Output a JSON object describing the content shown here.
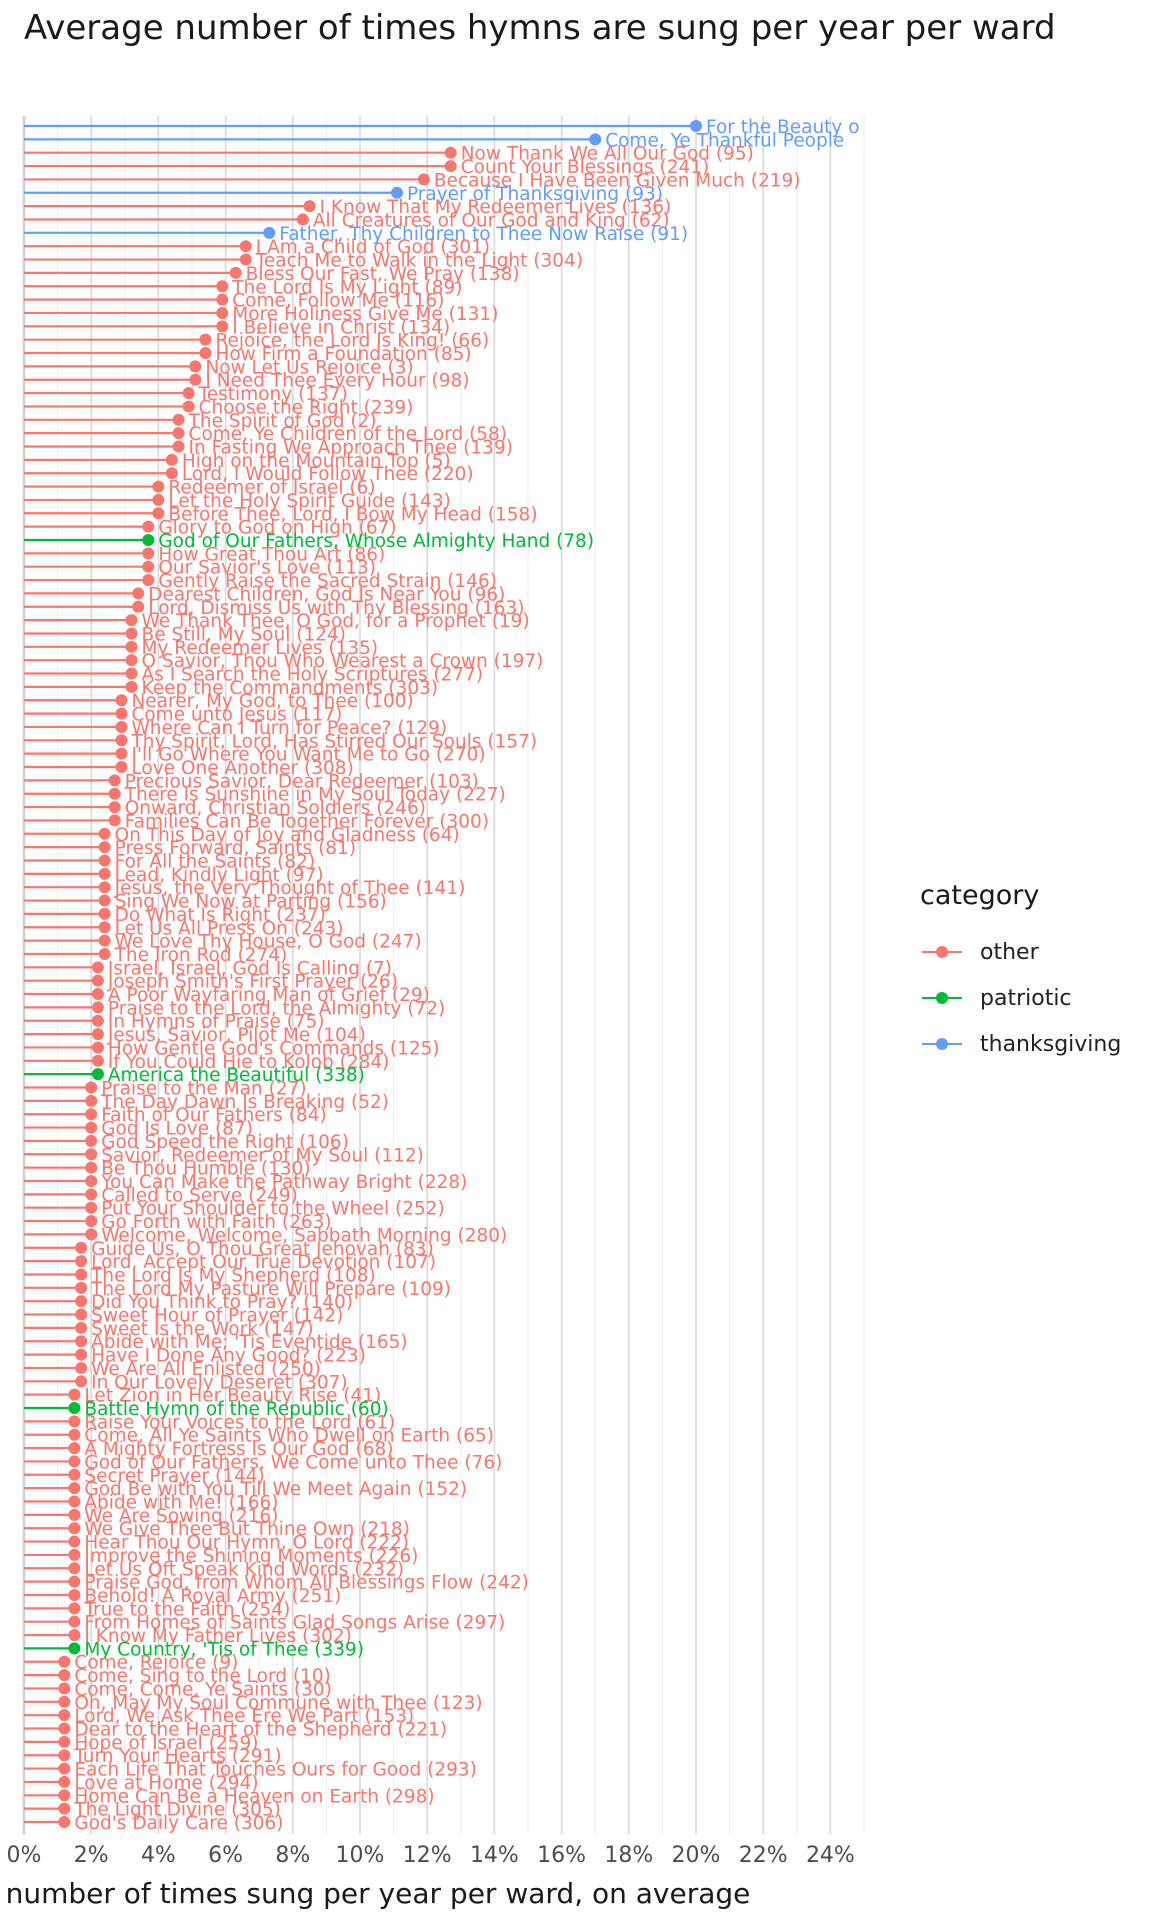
{
  "chart_data": {
    "type": "lollipop",
    "title": "Average number of times hymns are sung per year per ward",
    "xlabel": "number of times sung per year per ward, on average",
    "ylabel": "",
    "xlim": [
      0,
      25
    ],
    "x_ticks": [
      "0%",
      "2%",
      "4%",
      "6%",
      "8%",
      "10%",
      "12%",
      "14%",
      "16%",
      "18%",
      "20%",
      "22%",
      "24%"
    ],
    "legend": {
      "title": "category",
      "position": "right",
      "entries": [
        {
          "name": "other",
          "color": "#F8766D"
        },
        {
          "name": "patriotic",
          "color": "#00BA38"
        },
        {
          "name": "thanksgiving",
          "color": "#619CFF"
        }
      ]
    },
    "colors": {
      "other": "#F8766D",
      "patriotic": "#00BA38",
      "thanksgiving": "#619CFF"
    },
    "points": [
      {
        "label": "For the Beauty o",
        "value": 20.0,
        "category": "thanksgiving"
      },
      {
        "label": "Come, Ye Thankful People",
        "value": 17.0,
        "category": "thanksgiving"
      },
      {
        "label": "Now Thank We All Our God (95)",
        "value": 12.7,
        "category": "other"
      },
      {
        "label": "Count Your Blessings (241)",
        "value": 12.7,
        "category": "other"
      },
      {
        "label": "Because I Have Been Given Much (219)",
        "value": 11.9,
        "category": "other"
      },
      {
        "label": "Prayer of Thanksgiving (93)",
        "value": 11.1,
        "category": "thanksgiving"
      },
      {
        "label": "I Know That My Redeemer Lives (136)",
        "value": 8.5,
        "category": "other"
      },
      {
        "label": "All Creatures of Our God and King (62)",
        "value": 8.3,
        "category": "other"
      },
      {
        "label": "Father, Thy Children to Thee Now Raise (91)",
        "value": 7.3,
        "category": "thanksgiving"
      },
      {
        "label": "I Am a Child of God (301)",
        "value": 6.6,
        "category": "other"
      },
      {
        "label": "Teach Me to Walk in the Light (304)",
        "value": 6.6,
        "category": "other"
      },
      {
        "label": "Bless Our Fast, We Pray (138)",
        "value": 6.3,
        "category": "other"
      },
      {
        "label": "The Lord Is My Light (89)",
        "value": 5.9,
        "category": "other"
      },
      {
        "label": "Come, Follow Me (116)",
        "value": 5.9,
        "category": "other"
      },
      {
        "label": "More Holiness Give Me (131)",
        "value": 5.9,
        "category": "other"
      },
      {
        "label": "I Believe in Christ (134)",
        "value": 5.9,
        "category": "other"
      },
      {
        "label": "Rejoice, the Lord Is King! (66)",
        "value": 5.4,
        "category": "other"
      },
      {
        "label": "How Firm a Foundation (85)",
        "value": 5.4,
        "category": "other"
      },
      {
        "label": "Now Let Us Rejoice (3)",
        "value": 5.1,
        "category": "other"
      },
      {
        "label": "I Need Thee Every Hour (98)",
        "value": 5.1,
        "category": "other"
      },
      {
        "label": "Testimony (137)",
        "value": 4.9,
        "category": "other"
      },
      {
        "label": "Choose the Right (239)",
        "value": 4.9,
        "category": "other"
      },
      {
        "label": "The Spirit of God (2)",
        "value": 4.6,
        "category": "other"
      },
      {
        "label": "Come, Ye Children of the Lord (58)",
        "value": 4.6,
        "category": "other"
      },
      {
        "label": "In Fasting We Approach Thee (139)",
        "value": 4.6,
        "category": "other"
      },
      {
        "label": "High on the Mountain Top (5)",
        "value": 4.4,
        "category": "other"
      },
      {
        "label": "Lord, I Would Follow Thee (220)",
        "value": 4.4,
        "category": "other"
      },
      {
        "label": "Redeemer of Israel (6)",
        "value": 4.0,
        "category": "other"
      },
      {
        "label": "Let the Holy Spirit Guide (143)",
        "value": 4.0,
        "category": "other"
      },
      {
        "label": "Before Thee, Lord, I Bow My Head (158)",
        "value": 4.0,
        "category": "other"
      },
      {
        "label": "Glory to God on High (67)",
        "value": 3.7,
        "category": "other"
      },
      {
        "label": "God of Our Fathers, Whose Almighty Hand (78)",
        "value": 3.7,
        "category": "patriotic"
      },
      {
        "label": "How Great Thou Art (86)",
        "value": 3.7,
        "category": "other"
      },
      {
        "label": "Our Savior's Love (113)",
        "value": 3.7,
        "category": "other"
      },
      {
        "label": "Gently Raise the Sacred Strain (146)",
        "value": 3.7,
        "category": "other"
      },
      {
        "label": "Dearest Children, God Is Near You (96)",
        "value": 3.4,
        "category": "other"
      },
      {
        "label": "Lord, Dismiss Us with Thy Blessing (163)",
        "value": 3.4,
        "category": "other"
      },
      {
        "label": "We Thank Thee, O God, for a Prophet (19)",
        "value": 3.2,
        "category": "other"
      },
      {
        "label": "Be Still, My Soul (124)",
        "value": 3.2,
        "category": "other"
      },
      {
        "label": "My Redeemer Lives (135)",
        "value": 3.2,
        "category": "other"
      },
      {
        "label": "O Savior, Thou Who Wearest a Crown (197)",
        "value": 3.2,
        "category": "other"
      },
      {
        "label": "As I Search the Holy Scriptures (277)",
        "value": 3.2,
        "category": "other"
      },
      {
        "label": "Keep the Commandments (303)",
        "value": 3.2,
        "category": "other"
      },
      {
        "label": "Nearer, My God, to Thee (100)",
        "value": 2.9,
        "category": "other"
      },
      {
        "label": "Come unto Jesus (117)",
        "value": 2.9,
        "category": "other"
      },
      {
        "label": "Where Can I Turn for Peace? (129)",
        "value": 2.9,
        "category": "other"
      },
      {
        "label": "Thy Spirit, Lord, Has Stirred Our Souls (157)",
        "value": 2.9,
        "category": "other"
      },
      {
        "label": "I'll Go Where You Want Me to Go (270)",
        "value": 2.9,
        "category": "other"
      },
      {
        "label": "Love One Another (308)",
        "value": 2.9,
        "category": "other"
      },
      {
        "label": "Precious Savior, Dear Redeemer (103)",
        "value": 2.7,
        "category": "other"
      },
      {
        "label": "There Is Sunshine in My Soul Today (227)",
        "value": 2.7,
        "category": "other"
      },
      {
        "label": "Onward, Christian Soldiers (246)",
        "value": 2.7,
        "category": "other"
      },
      {
        "label": "Families Can Be Together Forever (300)",
        "value": 2.7,
        "category": "other"
      },
      {
        "label": "On This Day of Joy and Gladness (64)",
        "value": 2.4,
        "category": "other"
      },
      {
        "label": "Press Forward, Saints (81)",
        "value": 2.4,
        "category": "other"
      },
      {
        "label": "For All the Saints (82)",
        "value": 2.4,
        "category": "other"
      },
      {
        "label": "Lead, Kindly Light (97)",
        "value": 2.4,
        "category": "other"
      },
      {
        "label": "Jesus, the Very Thought of Thee (141)",
        "value": 2.4,
        "category": "other"
      },
      {
        "label": "Sing We Now at Parting (156)",
        "value": 2.4,
        "category": "other"
      },
      {
        "label": "Do What Is Right (237)",
        "value": 2.4,
        "category": "other"
      },
      {
        "label": "Let Us All Press On (243)",
        "value": 2.4,
        "category": "other"
      },
      {
        "label": "We Love Thy House, O God (247)",
        "value": 2.4,
        "category": "other"
      },
      {
        "label": "The Iron Rod (274)",
        "value": 2.4,
        "category": "other"
      },
      {
        "label": "Israel, Israel, God Is Calling (7)",
        "value": 2.2,
        "category": "other"
      },
      {
        "label": "Joseph Smith's First Prayer (26)",
        "value": 2.2,
        "category": "other"
      },
      {
        "label": "A Poor Wayfaring Man of Grief (29)",
        "value": 2.2,
        "category": "other"
      },
      {
        "label": "Praise to the Lord, the Almighty (72)",
        "value": 2.2,
        "category": "other"
      },
      {
        "label": "In Hymns of Praise (75)",
        "value": 2.2,
        "category": "other"
      },
      {
        "label": "Jesus, Savior, Pilot Me (104)",
        "value": 2.2,
        "category": "other"
      },
      {
        "label": "How Gentle God's Commands (125)",
        "value": 2.2,
        "category": "other"
      },
      {
        "label": "If You Could Hie to Kolob (284)",
        "value": 2.2,
        "category": "other"
      },
      {
        "label": "America the Beautiful (338)",
        "value": 2.2,
        "category": "patriotic"
      },
      {
        "label": "Praise to the Man (27)",
        "value": 2.0,
        "category": "other"
      },
      {
        "label": "The Day Dawn Is Breaking (52)",
        "value": 2.0,
        "category": "other"
      },
      {
        "label": "Faith of Our Fathers (84)",
        "value": 2.0,
        "category": "other"
      },
      {
        "label": "God Is Love (87)",
        "value": 2.0,
        "category": "other"
      },
      {
        "label": "God Speed the Right (106)",
        "value": 2.0,
        "category": "other"
      },
      {
        "label": "Savior, Redeemer of My Soul (112)",
        "value": 2.0,
        "category": "other"
      },
      {
        "label": "Be Thou Humble (130)",
        "value": 2.0,
        "category": "other"
      },
      {
        "label": "You Can Make the Pathway Bright (228)",
        "value": 2.0,
        "category": "other"
      },
      {
        "label": "Called to Serve (249)",
        "value": 2.0,
        "category": "other"
      },
      {
        "label": "Put Your Shoulder to the Wheel (252)",
        "value": 2.0,
        "category": "other"
      },
      {
        "label": "Go Forth with Faith (263)",
        "value": 2.0,
        "category": "other"
      },
      {
        "label": "Welcome, Welcome, Sabbath Morning (280)",
        "value": 2.0,
        "category": "other"
      },
      {
        "label": "Guide Us, O Thou Great Jehovah (83)",
        "value": 1.7,
        "category": "other"
      },
      {
        "label": "Lord, Accept Our True Devotion (107)",
        "value": 1.7,
        "category": "other"
      },
      {
        "label": "The Lord Is My Shepherd (108)",
        "value": 1.7,
        "category": "other"
      },
      {
        "label": "The Lord My Pasture Will Prepare (109)",
        "value": 1.7,
        "category": "other"
      },
      {
        "label": "Did You Think to Pray? (140)",
        "value": 1.7,
        "category": "other"
      },
      {
        "label": "Sweet Hour of Prayer (142)",
        "value": 1.7,
        "category": "other"
      },
      {
        "label": "Sweet Is the Work (147)",
        "value": 1.7,
        "category": "other"
      },
      {
        "label": "Abide with Me; 'Tis Eventide (165)",
        "value": 1.7,
        "category": "other"
      },
      {
        "label": "Have I Done Any Good? (223)",
        "value": 1.7,
        "category": "other"
      },
      {
        "label": "We Are All Enlisted (250)",
        "value": 1.7,
        "category": "other"
      },
      {
        "label": "In Our Lovely Deseret (307)",
        "value": 1.7,
        "category": "other"
      },
      {
        "label": "Let Zion in Her Beauty Rise (41)",
        "value": 1.5,
        "category": "other"
      },
      {
        "label": "Battle Hymn of the Republic (60)",
        "value": 1.5,
        "category": "patriotic"
      },
      {
        "label": "Raise Your Voices to the Lord (61)",
        "value": 1.5,
        "category": "other"
      },
      {
        "label": "Come, All Ye Saints Who Dwell on Earth (65)",
        "value": 1.5,
        "category": "other"
      },
      {
        "label": "A Mighty Fortress Is Our God (68)",
        "value": 1.5,
        "category": "other"
      },
      {
        "label": "God of Our Fathers, We Come unto Thee (76)",
        "value": 1.5,
        "category": "other"
      },
      {
        "label": "Secret Prayer (144)",
        "value": 1.5,
        "category": "other"
      },
      {
        "label": "God Be with You Till We Meet Again (152)",
        "value": 1.5,
        "category": "other"
      },
      {
        "label": "Abide with Me! (166)",
        "value": 1.5,
        "category": "other"
      },
      {
        "label": "We Are Sowing (216)",
        "value": 1.5,
        "category": "other"
      },
      {
        "label": "We Give Thee But Thine Own (218)",
        "value": 1.5,
        "category": "other"
      },
      {
        "label": "Hear Thou Our Hymn, O Lord (222)",
        "value": 1.5,
        "category": "other"
      },
      {
        "label": "Improve the Shining Moments (226)",
        "value": 1.5,
        "category": "other"
      },
      {
        "label": "Let Us Oft Speak Kind Words (232)",
        "value": 1.5,
        "category": "other"
      },
      {
        "label": "Praise God, from Whom All Blessings Flow (242)",
        "value": 1.5,
        "category": "other"
      },
      {
        "label": "Behold! A Royal Army (251)",
        "value": 1.5,
        "category": "other"
      },
      {
        "label": "True to the Faith (254)",
        "value": 1.5,
        "category": "other"
      },
      {
        "label": "From Homes of Saints Glad Songs Arise (297)",
        "value": 1.5,
        "category": "other"
      },
      {
        "label": "I Know My Father Lives (302)",
        "value": 1.5,
        "category": "other"
      },
      {
        "label": "My Country, 'Tis of Thee (339)",
        "value": 1.5,
        "category": "patriotic"
      },
      {
        "label": "Come, Rejoice (9)",
        "value": 1.2,
        "category": "other"
      },
      {
        "label": "Come, Sing to the Lord (10)",
        "value": 1.2,
        "category": "other"
      },
      {
        "label": "Come, Come, Ye Saints (30)",
        "value": 1.2,
        "category": "other"
      },
      {
        "label": "Oh, May My Soul Commune with Thee (123)",
        "value": 1.2,
        "category": "other"
      },
      {
        "label": "Lord, We Ask Thee Ere We Part (153)",
        "value": 1.2,
        "category": "other"
      },
      {
        "label": "Dear to the Heart of the Shepherd (221)",
        "value": 1.2,
        "category": "other"
      },
      {
        "label": "Hope of Israel (259)",
        "value": 1.2,
        "category": "other"
      },
      {
        "label": "Turn Your Hearts (291)",
        "value": 1.2,
        "category": "other"
      },
      {
        "label": "Each Life That Touches Ours for Good (293)",
        "value": 1.2,
        "category": "other"
      },
      {
        "label": "Love at Home (294)",
        "value": 1.2,
        "category": "other"
      },
      {
        "label": "Home Can Be a Heaven on Earth (298)",
        "value": 1.2,
        "category": "other"
      },
      {
        "label": "The Light Divine (305)",
        "value": 1.2,
        "category": "other"
      },
      {
        "label": "God's Daily Care (306)",
        "value": 1.2,
        "category": "other"
      }
    ]
  }
}
